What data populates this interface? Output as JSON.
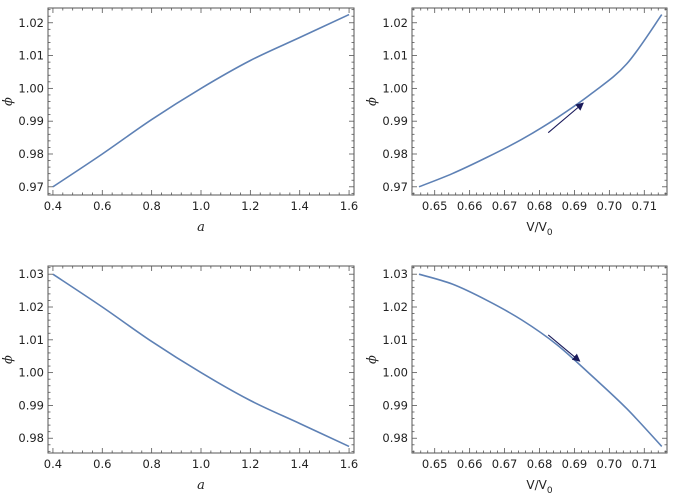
{
  "colors": {
    "curve": "#5e81b5",
    "arrow": "#1a1a5a",
    "frame": "#555555"
  },
  "chart_data": [
    {
      "type": "line",
      "xlabel": "a",
      "ylabel": "ϕ",
      "xlim": [
        0.38,
        1.62
      ],
      "ylim": [
        0.9675,
        1.0245
      ],
      "xticks": [
        "0.4",
        "0.6",
        "0.8",
        "1.0",
        "1.2",
        "1.4",
        "1.6"
      ],
      "yticks": [
        "0.97",
        "0.98",
        "0.99",
        "1.00",
        "1.01",
        "1.02"
      ],
      "series": [
        {
          "x": [
            0.4,
            0.6,
            0.8,
            1.0,
            1.2,
            1.4,
            1.6
          ],
          "y": [
            0.97,
            0.98,
            0.9905,
            1.0,
            1.0085,
            1.0155,
            1.0225
          ]
        }
      ],
      "arrow": null
    },
    {
      "type": "line",
      "xlabel": "V/V0",
      "ylabel": "ϕ",
      "xlim": [
        0.6435,
        0.7165
      ],
      "ylim": [
        0.9675,
        1.0245
      ],
      "xticks": [
        "0.65",
        "0.66",
        "0.67",
        "0.68",
        "0.69",
        "0.70",
        "0.71"
      ],
      "yticks": [
        "0.97",
        "0.98",
        "0.99",
        "1.00",
        "1.01",
        "1.02"
      ],
      "series": [
        {
          "x": [
            0.6455,
            0.655,
            0.665,
            0.675,
            0.685,
            0.695,
            0.705,
            0.715
          ],
          "y": [
            0.97,
            0.974,
            0.979,
            0.9845,
            0.991,
            0.9985,
            1.0075,
            1.0225
          ]
        }
      ],
      "arrow": {
        "from": [
          0.6825,
          0.9865
        ],
        "to": [
          0.6925,
          0.9955
        ]
      }
    },
    {
      "type": "line",
      "xlabel": "a",
      "ylabel": "ϕ",
      "xlim": [
        0.38,
        1.62
      ],
      "ylim": [
        0.9755,
        1.0325
      ],
      "xticks": [
        "0.4",
        "0.6",
        "0.8",
        "1.0",
        "1.2",
        "1.4",
        "1.6"
      ],
      "yticks": [
        "0.98",
        "0.99",
        "1.00",
        "1.01",
        "1.02",
        "1.03"
      ],
      "series": [
        {
          "x": [
            0.4,
            0.6,
            0.8,
            1.0,
            1.2,
            1.4,
            1.6
          ],
          "y": [
            1.03,
            1.02,
            1.0095,
            1.0,
            0.9915,
            0.9845,
            0.9775
          ]
        }
      ],
      "arrow": null
    },
    {
      "type": "line",
      "xlabel": "V/V0",
      "ylabel": "ϕ",
      "xlim": [
        0.6435,
        0.7165
      ],
      "ylim": [
        0.9755,
        1.0325
      ],
      "xticks": [
        "0.65",
        "0.66",
        "0.67",
        "0.68",
        "0.69",
        "0.70",
        "0.71"
      ],
      "yticks": [
        "0.98",
        "0.99",
        "1.00",
        "1.01",
        "1.02",
        "1.03"
      ],
      "series": [
        {
          "x": [
            0.6455,
            0.655,
            0.665,
            0.675,
            0.685,
            0.695,
            0.705,
            0.715
          ],
          "y": [
            1.03,
            1.027,
            1.022,
            1.016,
            1.0085,
            0.999,
            0.989,
            0.9775
          ]
        }
      ],
      "arrow": {
        "from": [
          0.6825,
          1.0115
        ],
        "to": [
          0.6915,
          1.0035
        ]
      }
    }
  ]
}
